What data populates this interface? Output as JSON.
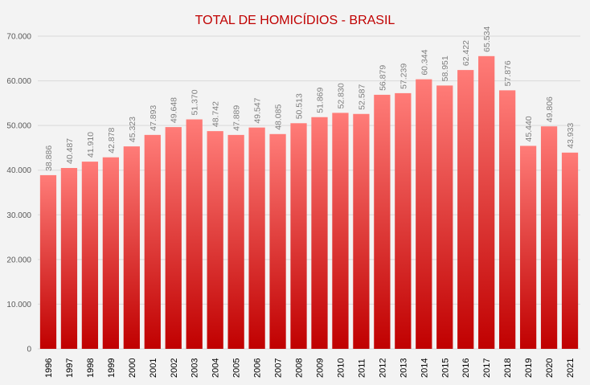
{
  "chart_data": {
    "type": "bar",
    "title": "TOTAL DE HOMICÍDIOS - BRASIL",
    "xlabel": "",
    "ylabel": "",
    "ylim": [
      0,
      70000
    ],
    "grid": true,
    "legend": "none",
    "y_ticks": [
      0,
      10000,
      20000,
      30000,
      40000,
      50000,
      60000,
      70000
    ],
    "y_tick_labels": [
      "0",
      "10.000",
      "20.000",
      "30.000",
      "40.000",
      "50.000",
      "60.000",
      "70.000"
    ],
    "categories": [
      "1996",
      "1997",
      "1998",
      "1999",
      "2000",
      "2001",
      "2002",
      "2003",
      "2004",
      "2005",
      "2006",
      "2007",
      "2008",
      "2009",
      "2010",
      "2011",
      "2012",
      "2013",
      "2014",
      "2015",
      "2016",
      "2017",
      "2018",
      "2019",
      "2020",
      "2021"
    ],
    "values": [
      38886,
      40487,
      41910,
      42878,
      45323,
      47893,
      49648,
      51370,
      48742,
      47889,
      49547,
      48085,
      50513,
      51869,
      52830,
      52587,
      56879,
      57239,
      60344,
      58951,
      62422,
      65534,
      57876,
      45440,
      49806,
      43933
    ],
    "data_labels": [
      "38.886",
      "40.487",
      "41.910",
      "42.878",
      "45.323",
      "47.893",
      "49.648",
      "51.370",
      "48.742",
      "47.889",
      "49.547",
      "48.085",
      "50.513",
      "51.869",
      "52.830",
      "52.587",
      "56.879",
      "57.239",
      "60.344",
      "58.951",
      "62.422",
      "65.534",
      "57.876",
      "45.440",
      "49.806",
      "43.933"
    ],
    "colors": {
      "bar_top": "#ff7c78",
      "bar_bottom": "#c00000",
      "title": "#c00000"
    }
  }
}
